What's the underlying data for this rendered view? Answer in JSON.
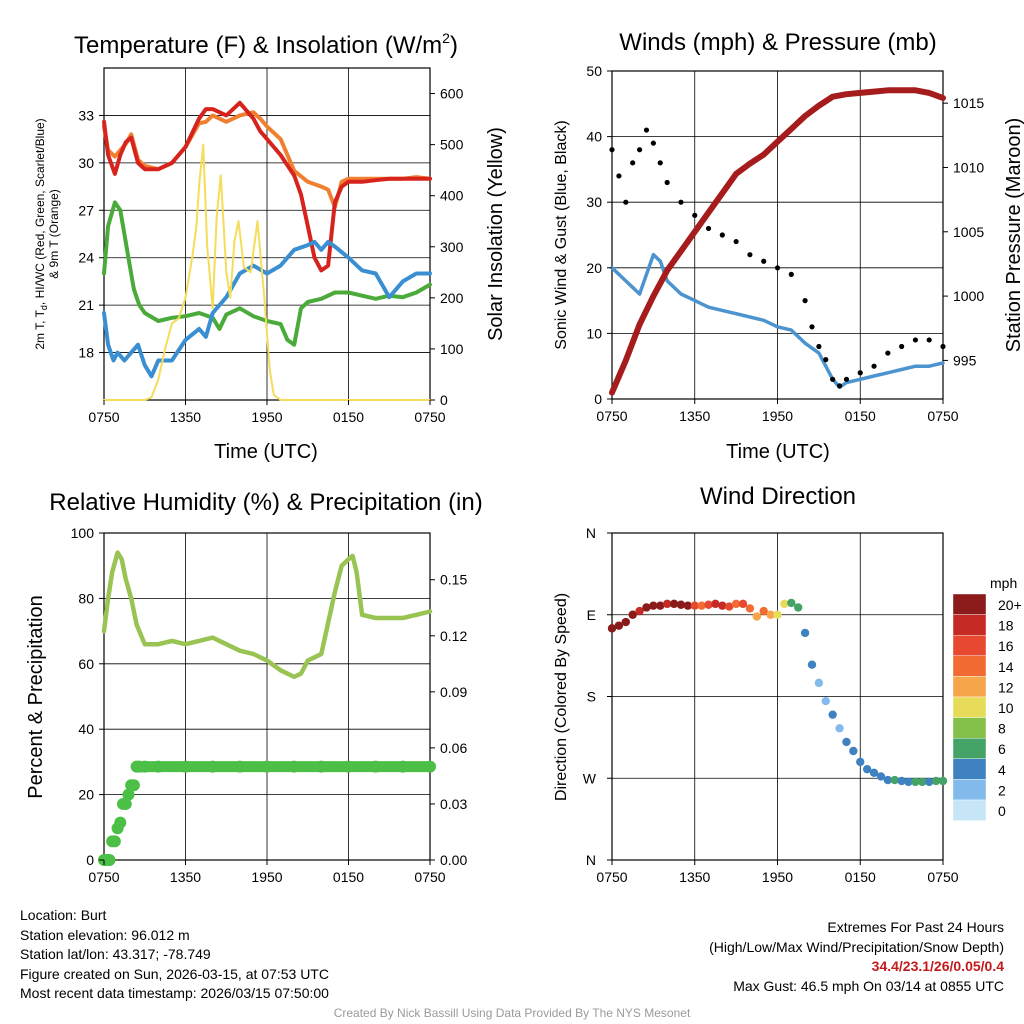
{
  "chart_data": [
    {
      "type": "line",
      "title": "Temperature (F) & Insolation (W/m",
      "title_superscript": "2",
      "title_suffix": ")",
      "xlabel": "Time (UTC)",
      "ylabel_left": [
        "2m T, T",
        "d",
        ", HI/WC (Red, Green, Scarlet/Blue)",
        "& 9m T (Orange)"
      ],
      "ylabel_right": "Solar Insolation (Yellow)",
      "x_ticks": [
        "0750",
        "1350",
        "1950",
        "0150",
        "0750"
      ],
      "ylim_left": [
        15,
        36
      ],
      "yticks_left": [
        "18",
        "21",
        "24",
        "27",
        "30",
        "33"
      ],
      "ylim_right": [
        0,
        650
      ],
      "yticks_right": [
        "0",
        "100",
        "200",
        "300",
        "400",
        "500",
        "600"
      ],
      "series": [
        {
          "name": "9m T",
          "color": "#f08030",
          "axis": "left",
          "x": [
            0,
            0.3,
            0.8,
            1.2,
            1.6,
            2.0,
            2.5,
            3,
            4,
            5,
            6,
            7,
            7.5,
            8,
            9,
            10,
            11,
            11.5,
            12,
            13,
            14,
            15,
            16,
            16.5,
            17,
            17.5,
            18,
            19,
            20,
            21,
            22,
            23,
            24
          ],
          "values": [
            32.3,
            30.8,
            30.4,
            30.8,
            31.2,
            31.8,
            30.2,
            29.8,
            29.6,
            30.0,
            31.0,
            32.5,
            32.6,
            33.0,
            32.6,
            33.0,
            33.2,
            32.8,
            32.3,
            31.5,
            29.5,
            28.8,
            28.5,
            28.3,
            27.2,
            28.8,
            29.0,
            29.0,
            29.0,
            29.0,
            29.0,
            29.1,
            29.0
          ]
        },
        {
          "name": "2m T",
          "color": "#d7231e",
          "axis": "left",
          "x": [
            0,
            0.3,
            0.8,
            1.2,
            1.6,
            2.0,
            2.5,
            3,
            4,
            5,
            6,
            7,
            7.5,
            8,
            9,
            10,
            11,
            11.5,
            12,
            13,
            14,
            14.5,
            15,
            15.5,
            16,
            16.5,
            17,
            17.5,
            18,
            19,
            20,
            21,
            22,
            23,
            24
          ],
          "values": [
            32.6,
            30.5,
            29.3,
            30.5,
            31.3,
            31.6,
            30.0,
            29.6,
            29.6,
            30.0,
            31.0,
            32.8,
            33.4,
            33.4,
            33.0,
            33.8,
            32.8,
            32.0,
            31.5,
            30.5,
            29.2,
            28.0,
            26.0,
            24.0,
            23.2,
            23.5,
            27.5,
            28.5,
            28.8,
            28.8,
            28.9,
            29.0,
            29.0,
            29.0,
            29.0
          ]
        },
        {
          "name": "Td",
          "color": "#4aab3a",
          "axis": "left",
          "x": [
            0,
            0.3,
            0.8,
            1.2,
            1.5,
            1.8,
            2.2,
            2.6,
            3,
            4,
            5,
            6,
            7,
            8,
            8.5,
            9,
            10,
            11,
            12,
            13,
            13.5,
            14,
            14.5,
            15,
            16,
            17,
            18,
            19,
            20,
            21,
            22,
            23,
            24
          ],
          "values": [
            23.0,
            26.0,
            27.5,
            27.0,
            25.5,
            24.0,
            22.0,
            21.0,
            20.5,
            20.0,
            20.2,
            20.3,
            20.5,
            20.2,
            19.5,
            20.4,
            20.8,
            20.3,
            20.0,
            19.8,
            18.8,
            18.5,
            20.8,
            21.2,
            21.4,
            21.8,
            21.8,
            21.6,
            21.4,
            21.6,
            21.5,
            21.8,
            22.3
          ]
        },
        {
          "name": "HI/WC",
          "color": "#3a8fd2",
          "axis": "left",
          "x": [
            0,
            0.3,
            0.7,
            1,
            1.5,
            2,
            2.5,
            3,
            3.5,
            4,
            4.5,
            5,
            6,
            7,
            7.5,
            8,
            9,
            10,
            11,
            12,
            13,
            14,
            15,
            15.5,
            16,
            16.5,
            17,
            18,
            19,
            20,
            21,
            22,
            23,
            23.5,
            24
          ],
          "values": [
            20.5,
            18.5,
            17.5,
            18.0,
            17.5,
            18.0,
            18.5,
            17.2,
            16.5,
            17.5,
            17.5,
            17.5,
            18.8,
            19.5,
            19.0,
            20.5,
            21.5,
            23.0,
            23.5,
            23.0,
            23.5,
            24.5,
            24.8,
            25.0,
            24.5,
            25.0,
            24.7,
            24.0,
            23.2,
            23.0,
            21.5,
            22.5,
            23.0,
            23.0,
            23.0
          ]
        },
        {
          "name": "Solar Insolation",
          "color": "#f5dc5a",
          "axis": "right",
          "x": [
            0,
            3.0,
            3.5,
            4,
            4.5,
            5,
            5.5,
            6,
            6.5,
            6.8,
            7.0,
            7.3,
            7.6,
            8,
            8.3,
            8.6,
            9,
            9.3,
            9.6,
            9.9,
            10.3,
            10.8,
            11.3,
            11.8,
            12.2,
            12.5,
            13,
            14,
            15,
            16,
            17,
            18,
            19,
            20,
            21,
            22,
            23,
            24
          ],
          "values": [
            0,
            0,
            5,
            40,
            100,
            150,
            160,
            200,
            280,
            340,
            420,
            500,
            300,
            180,
            360,
            440,
            250,
            200,
            310,
            350,
            260,
            250,
            350,
            200,
            60,
            10,
            0,
            0,
            0,
            0,
            0,
            0,
            0,
            0,
            0,
            0,
            0,
            0
          ]
        }
      ]
    },
    {
      "type": "line",
      "title": "Winds (mph) & Pressure (mb)",
      "xlabel": "Time (UTC)",
      "ylabel_left": "Sonic Wind & Gust (Blue, Black)",
      "ylabel_right": "Station Pressure (Maroon)",
      "x_ticks": [
        "0750",
        "1350",
        "1950",
        "0150",
        "0750"
      ],
      "ylim_left": [
        0,
        50
      ],
      "yticks_left": [
        "0",
        "10",
        "20",
        "30",
        "40",
        "50"
      ],
      "ylim_right": [
        992.0,
        1017.5
      ],
      "yticks_right": [
        "995",
        "1000",
        "1005",
        "1010",
        "1015"
      ],
      "series": [
        {
          "name": "Sonic Wind",
          "color": "#4c94cf",
          "axis": "left",
          "x": [
            0,
            1,
            2,
            3,
            3.5,
            4,
            5,
            6,
            7,
            8,
            9,
            10,
            11,
            12,
            13,
            14,
            15,
            15.5,
            16,
            16.5,
            17,
            18,
            19,
            20,
            21,
            22,
            23,
            24
          ],
          "values": [
            20,
            18,
            16,
            22,
            21,
            18,
            16,
            15,
            14,
            13.5,
            13,
            12.5,
            12,
            11,
            10.5,
            8.5,
            7,
            5,
            3,
            1.8,
            2.5,
            3,
            3.5,
            4,
            4.5,
            5,
            5,
            5.5
          ]
        },
        {
          "name": "Gust",
          "color": "#000000",
          "axis": "left",
          "style": "points",
          "x": [
            0,
            0.5,
            1,
            1.5,
            2,
            2.5,
            3,
            3.5,
            4,
            5,
            6,
            7,
            8,
            9,
            10,
            11,
            12,
            13,
            14,
            14.5,
            15,
            15.5,
            16,
            16.5,
            17,
            18,
            19,
            20,
            21,
            22,
            23,
            24
          ],
          "values": [
            38,
            34,
            30,
            36,
            38,
            41,
            39,
            36,
            33,
            30,
            28,
            26,
            25,
            24,
            22,
            21,
            20,
            19,
            15,
            11,
            8,
            6,
            3,
            2,
            3,
            4,
            5,
            7,
            8,
            9,
            9,
            8
          ]
        },
        {
          "name": "Station Pressure",
          "color": "#a61c1c",
          "axis": "right",
          "x": [
            0,
            1,
            2,
            3,
            4,
            5,
            6,
            7,
            8,
            9,
            10,
            11,
            12,
            13,
            14,
            15,
            16,
            17,
            18,
            19,
            20,
            21,
            22,
            23,
            23.5,
            24
          ],
          "values": [
            992.5,
            995,
            997.8,
            1000,
            1002,
            1003.5,
            1005,
            1006.5,
            1008,
            1009.5,
            1010.3,
            1011,
            1012,
            1013,
            1014,
            1014.8,
            1015.5,
            1015.7,
            1015.8,
            1015.9,
            1016,
            1016,
            1016,
            1015.8,
            1015.6,
            1015.4
          ]
        }
      ]
    },
    {
      "type": "line",
      "title": "Relative Humidity (%) & Precipitation (in)",
      "xlabel": "",
      "ylabel_left": "Percent & Precipitation",
      "x_ticks": [
        "0750",
        "1350",
        "1950",
        "0150",
        "0750"
      ],
      "ylim_left": [
        0,
        100
      ],
      "yticks_left": [
        "0",
        "20",
        "40",
        "60",
        "80",
        "100"
      ],
      "ylim_right": [
        0,
        0.175
      ],
      "yticks_right": [
        "0.00",
        "0.03",
        "0.06",
        "0.09",
        "0.12",
        "0.15"
      ],
      "series": [
        {
          "name": "Relative Humidity",
          "color": "#99c454",
          "axis": "left",
          "x": [
            0,
            0.3,
            0.6,
            1,
            1.3,
            1.6,
            2,
            2.4,
            2.8,
            3,
            4,
            5,
            6,
            7,
            8,
            9,
            10,
            11,
            12,
            13,
            14,
            14.5,
            15,
            15.5,
            16,
            17,
            17.5,
            18,
            18.3,
            18.6,
            19,
            20,
            21,
            22,
            23,
            24
          ],
          "values": [
            70,
            80,
            88,
            94,
            92,
            86,
            80,
            72,
            68,
            66,
            66,
            67,
            66,
            67,
            68,
            66,
            64,
            63,
            61,
            58,
            56,
            57,
            61,
            62,
            63,
            82,
            90,
            92,
            93,
            88,
            75,
            74,
            74,
            74,
            75,
            76
          ]
        },
        {
          "name": "Precipitation",
          "color": "#4cbf46",
          "axis": "right",
          "style": "points",
          "x": [
            0,
            0.2,
            0.4,
            0.6,
            0.8,
            1.0,
            1.2,
            1.4,
            1.6,
            1.8,
            2.0,
            2.2,
            2.4,
            2.6,
            3,
            4,
            6,
            8,
            10,
            12,
            14,
            16,
            18,
            20,
            22,
            24
          ],
          "values": [
            0,
            0,
            0,
            0.01,
            0.01,
            0.017,
            0.02,
            0.03,
            0.03,
            0.035,
            0.04,
            0.04,
            0.05,
            0.05,
            0.05,
            0.05,
            0.05,
            0.05,
            0.05,
            0.05,
            0.05,
            0.05,
            0.05,
            0.05,
            0.05,
            0.05
          ]
        }
      ]
    },
    {
      "type": "scatter",
      "title": "Wind Direction",
      "ylabel_left": "Direction (Colored By Speed)",
      "x_ticks": [
        "0750",
        "1350",
        "1950",
        "0150",
        "0750"
      ],
      "y_ticks": [
        "N",
        "W",
        "S",
        "E",
        "N"
      ],
      "ylim": [
        0,
        360
      ],
      "legend": {
        "title": "mph",
        "labels": [
          "20+",
          "18",
          "16",
          "14",
          "12",
          "10",
          "8",
          "6",
          "4",
          "2",
          "0"
        ],
        "colors": [
          "#8b1a1a",
          "#c62a24",
          "#e64830",
          "#f26b32",
          "#f7a54a",
          "#e7dc5a",
          "#84c04a",
          "#46a368",
          "#3f82c2",
          "#82baeb",
          "#c6e6f8"
        ]
      },
      "points": {
        "x": [
          0,
          0.5,
          1,
          1.5,
          2,
          2.5,
          3,
          3.5,
          4,
          4.5,
          5,
          5.5,
          6,
          6.5,
          7,
          7.5,
          8,
          8.5,
          9,
          9.5,
          10,
          10.5,
          11,
          11.5,
          12,
          12.5,
          13,
          13.5,
          14,
          14.5,
          15,
          15.5,
          16,
          16.5,
          17,
          17.5,
          18,
          18.5,
          19,
          19.5,
          20,
          20.5,
          21,
          21.5,
          22,
          22.5,
          23,
          23.5,
          24
        ],
        "direction": [
          255,
          258,
          262,
          270,
          274,
          278,
          280,
          280,
          282,
          282,
          281,
          280,
          280,
          280,
          281,
          282,
          280,
          279,
          282,
          282,
          277,
          268,
          274,
          270,
          270,
          282,
          283,
          278,
          250,
          215,
          195,
          175,
          160,
          145,
          130,
          120,
          108,
          100,
          96,
          92,
          88,
          88,
          87,
          86,
          86,
          86,
          86,
          87,
          87
        ],
        "speed": [
          20,
          19,
          20,
          20,
          18,
          20,
          19,
          20,
          18,
          20,
          19,
          20,
          16,
          14,
          16,
          18,
          17,
          15,
          14,
          16,
          13,
          11,
          14,
          12,
          10,
          9,
          6,
          5,
          3,
          3,
          1,
          2,
          3,
          2,
          3,
          3,
          4,
          3,
          3,
          4,
          4,
          5,
          4,
          4,
          5,
          5,
          4,
          5,
          5
        ]
      }
    }
  ],
  "info": {
    "location": "Location: Burt",
    "elevation": "Station elevation: 96.012 m",
    "latlon": "Station lat/lon: 43.317; -78.749",
    "created": "Figure created on Sun, 2026-03-15, at 07:53 UTC",
    "recent": "Most recent data timestamp: 2026/03/15 07:50:00"
  },
  "extremes": {
    "title": "Extremes For Past 24 Hours",
    "subtitle": "(High/Low/Max Wind/Precipitation/Snow Depth)",
    "values": "34.4/23.1/26/0.05/0.4",
    "max_gust": "Max Gust: 46.5 mph On 03/14 at 0855 UTC",
    "value_color": "#c21b1b"
  },
  "credit": "Created By Nick Bassill Using Data Provided By The NYS Mesonet"
}
